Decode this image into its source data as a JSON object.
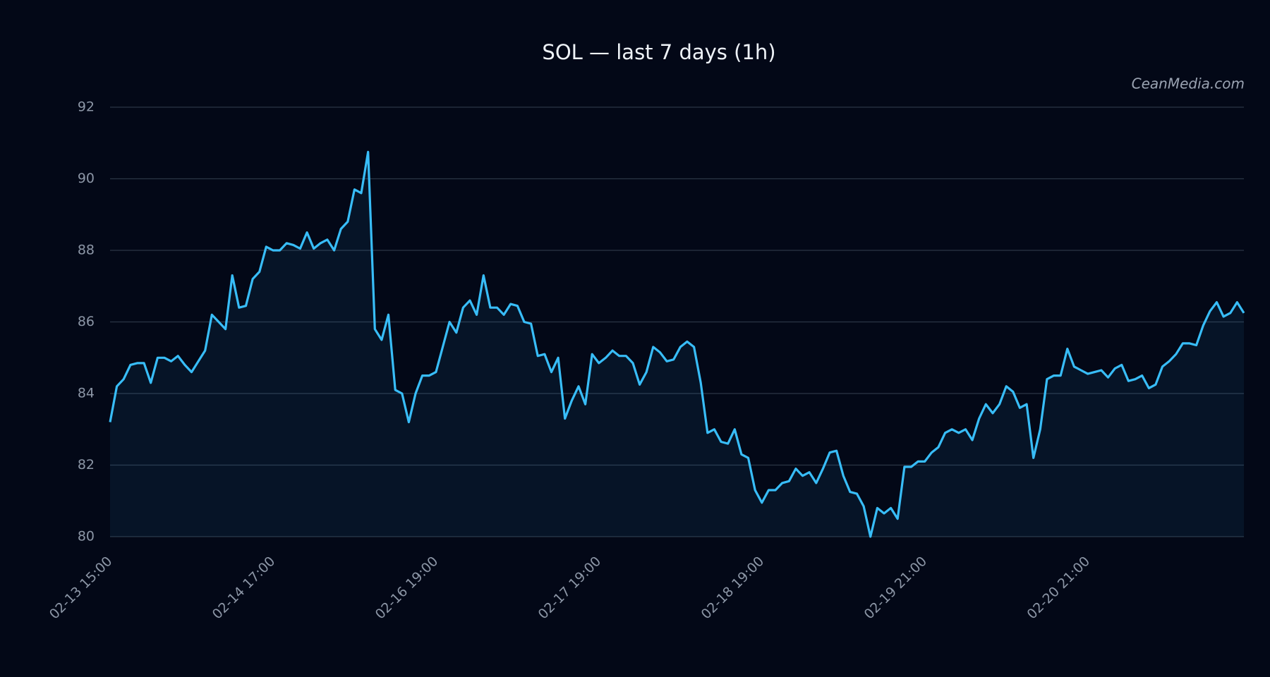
{
  "chart_data": {
    "type": "area-line",
    "title": "SOL — last 7 days (1h)",
    "watermark": "CeanMedia.com",
    "categories": [
      "02-13 15:00",
      null,
      null,
      null,
      null,
      null,
      null,
      null,
      null,
      null,
      null,
      null,
      null,
      null,
      null,
      null,
      null,
      null,
      null,
      null,
      null,
      null,
      null,
      null,
      "02-14 17:00",
      null,
      null,
      null,
      null,
      null,
      null,
      null,
      null,
      null,
      null,
      null,
      null,
      null,
      null,
      null,
      null,
      null,
      null,
      null,
      null,
      null,
      null,
      null,
      "02-16 19:00",
      null,
      null,
      null,
      null,
      null,
      null,
      null,
      null,
      null,
      null,
      null,
      null,
      null,
      null,
      null,
      null,
      null,
      null,
      null,
      null,
      null,
      null,
      null,
      "02-17 19:00",
      null,
      null,
      null,
      null,
      null,
      null,
      null,
      null,
      null,
      null,
      null,
      null,
      null,
      null,
      null,
      null,
      null,
      null,
      null,
      null,
      null,
      null,
      null,
      "02-18 19:00",
      null,
      null,
      null,
      null,
      null,
      null,
      null,
      null,
      null,
      null,
      null,
      null,
      null,
      null,
      null,
      null,
      null,
      null,
      null,
      null,
      null,
      null,
      null,
      "02-19 21:00",
      null,
      null,
      null,
      null,
      null,
      null,
      null,
      null,
      null,
      null,
      null,
      null,
      null,
      null,
      null,
      null,
      null,
      null,
      null,
      null,
      null,
      null,
      null,
      "02-20 21:00",
      null,
      null,
      null,
      null,
      null,
      null,
      null,
      null,
      null,
      null,
      null,
      null,
      null,
      null,
      null,
      null,
      null,
      null,
      null,
      null,
      null,
      null,
      null
    ],
    "series": [
      {
        "name": "SOL",
        "color": "#38bdf8",
        "values": [
          83.2,
          84.2,
          84.4,
          84.8,
          84.85,
          84.85,
          84.3,
          85.0,
          85.0,
          84.9,
          85.05,
          84.8,
          84.6,
          84.9,
          85.2,
          86.2,
          86.0,
          85.8,
          87.3,
          86.4,
          86.45,
          87.2,
          87.4,
          88.1,
          88.0,
          88.0,
          88.2,
          88.15,
          88.05,
          88.5,
          88.05,
          88.2,
          88.3,
          88.0,
          88.6,
          88.8,
          89.7,
          89.6,
          90.75,
          85.8,
          85.5,
          86.2,
          84.1,
          84.0,
          83.2,
          84.0,
          84.5,
          84.5,
          84.6,
          85.3,
          86.0,
          85.7,
          86.4,
          86.6,
          86.2,
          87.3,
          86.4,
          86.4,
          86.2,
          86.5,
          86.45,
          86.0,
          85.95,
          85.05,
          85.1,
          84.6,
          85.0,
          83.3,
          83.8,
          84.2,
          83.7,
          85.1,
          84.85,
          85.0,
          85.2,
          85.05,
          85.05,
          84.85,
          84.25,
          84.6,
          85.3,
          85.15,
          84.9,
          84.95,
          85.3,
          85.45,
          85.3,
          84.3,
          82.9,
          83.0,
          82.65,
          82.6,
          83.0,
          82.3,
          82.2,
          81.3,
          80.95,
          81.3,
          81.3,
          81.5,
          81.55,
          81.9,
          81.7,
          81.8,
          81.5,
          81.9,
          82.35,
          82.4,
          81.7,
          81.25,
          81.2,
          80.85,
          80.0,
          80.8,
          80.65,
          80.8,
          80.5,
          81.95,
          81.95,
          82.1,
          82.1,
          82.35,
          82.5,
          82.9,
          83.0,
          82.9,
          83.0,
          82.7,
          83.3,
          83.7,
          83.45,
          83.7,
          84.2,
          84.05,
          83.6,
          83.7,
          82.2,
          83.0,
          84.4,
          84.5,
          84.5,
          85.25,
          84.75,
          84.65,
          84.55,
          84.6,
          84.65,
          84.45,
          84.7,
          84.8,
          84.35,
          84.4,
          84.5,
          84.15,
          84.25,
          84.75,
          84.9,
          85.1,
          85.4,
          85.4,
          85.35,
          85.9,
          86.3,
          86.55,
          86.15,
          86.25,
          86.55,
          86.25
        ]
      }
    ],
    "ylim": [
      80,
      92
    ],
    "yticks": [
      80,
      82,
      84,
      86,
      88,
      90,
      92
    ],
    "grid": true
  }
}
